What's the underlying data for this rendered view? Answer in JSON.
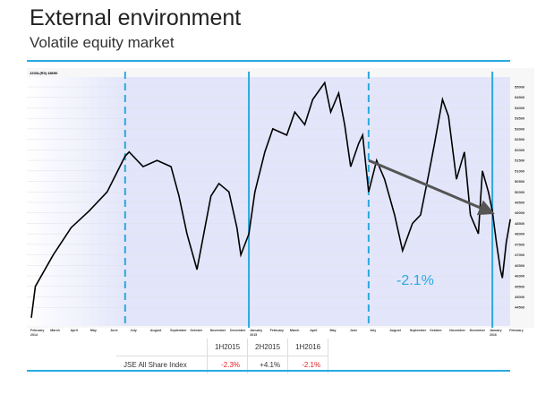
{
  "header": {
    "title": "External environment",
    "subtitle": "Volatile equity market"
  },
  "colors": {
    "accent": "#29a9e0",
    "negative": "#e02020",
    "shade": "#e3e6fa"
  },
  "chart_data": {
    "type": "line",
    "title": "JSE All Share Index",
    "legend_label": "J203L(R0) 48650",
    "x_unit": "months since February 2014",
    "ylim": [
      43800,
      55500
    ],
    "y_ticks": [
      55000,
      54500,
      54000,
      53500,
      53000,
      52500,
      52000,
      51500,
      51000,
      50500,
      50000,
      49500,
      49000,
      48500,
      48000,
      47500,
      47000,
      46500,
      46000,
      45500,
      45000,
      44500
    ],
    "month_labels": [
      "February 2014",
      "March",
      "April",
      "May",
      "June",
      "July",
      "August",
      "September",
      "October",
      "November",
      "December",
      "January 2015",
      "February",
      "March",
      "April",
      "May",
      "June",
      "July",
      "August",
      "September",
      "October",
      "November",
      "December",
      "January 2016",
      "February"
    ],
    "points": [
      [
        0,
        44000
      ],
      [
        0.2,
        45500
      ],
      [
        1.1,
        47000
      ],
      [
        2,
        48300
      ],
      [
        2.9,
        49100
      ],
      [
        3.8,
        50000
      ],
      [
        4.7,
        51700
      ],
      [
        4.9,
        51900
      ],
      [
        5.6,
        51200
      ],
      [
        6.3,
        51500
      ],
      [
        7,
        51200
      ],
      [
        7.4,
        49800
      ],
      [
        7.8,
        48000
      ],
      [
        8.3,
        46300
      ],
      [
        9,
        49800
      ],
      [
        9.4,
        50400
      ],
      [
        9.9,
        50000
      ],
      [
        10.3,
        48300
      ],
      [
        10.5,
        47000
      ],
      [
        10.9,
        48000
      ],
      [
        11.2,
        50000
      ],
      [
        11.7,
        51900
      ],
      [
        12.1,
        53000
      ],
      [
        12.8,
        52700
      ],
      [
        13.2,
        53800
      ],
      [
        13.7,
        53200
      ],
      [
        14.1,
        54400
      ],
      [
        14.7,
        55200
      ],
      [
        15,
        53800
      ],
      [
        15.4,
        54700
      ],
      [
        15.7,
        53200
      ],
      [
        16,
        51200
      ],
      [
        16.4,
        52300
      ],
      [
        16.6,
        52700
      ],
      [
        16.9,
        50000
      ],
      [
        17.3,
        51500
      ],
      [
        17.7,
        50600
      ],
      [
        18.2,
        48900
      ],
      [
        18.6,
        47200
      ],
      [
        19.1,
        48500
      ],
      [
        19.5,
        48900
      ],
      [
        19.9,
        50800
      ],
      [
        20.2,
        52300
      ],
      [
        20.6,
        54400
      ],
      [
        20.9,
        53600
      ],
      [
        21.3,
        50600
      ],
      [
        21.7,
        51900
      ],
      [
        22,
        48900
      ],
      [
        22.4,
        48000
      ],
      [
        22.6,
        51000
      ],
      [
        22.9,
        50000
      ],
      [
        23.1,
        49100
      ],
      [
        23.3,
        47600
      ],
      [
        23.5,
        46300
      ],
      [
        23.6,
        45900
      ],
      [
        23.8,
        47600
      ],
      [
        24,
        48700
      ]
    ],
    "dashed_markers": [
      4.7,
      16.9
    ],
    "solid_markers": [
      10.9,
      23.1
    ],
    "trend_arrow": {
      "from": [
        16.9,
        51500
      ],
      "to": [
        23.1,
        49000
      ]
    },
    "annotation": "-2.1%"
  },
  "table": {
    "headers": [
      "",
      "1H2015",
      "2H2015",
      "1H2016"
    ],
    "row": {
      "label": "JSE All Share Index",
      "values": [
        "-2.3%",
        "+4.1%",
        "-2.1%"
      ]
    }
  }
}
